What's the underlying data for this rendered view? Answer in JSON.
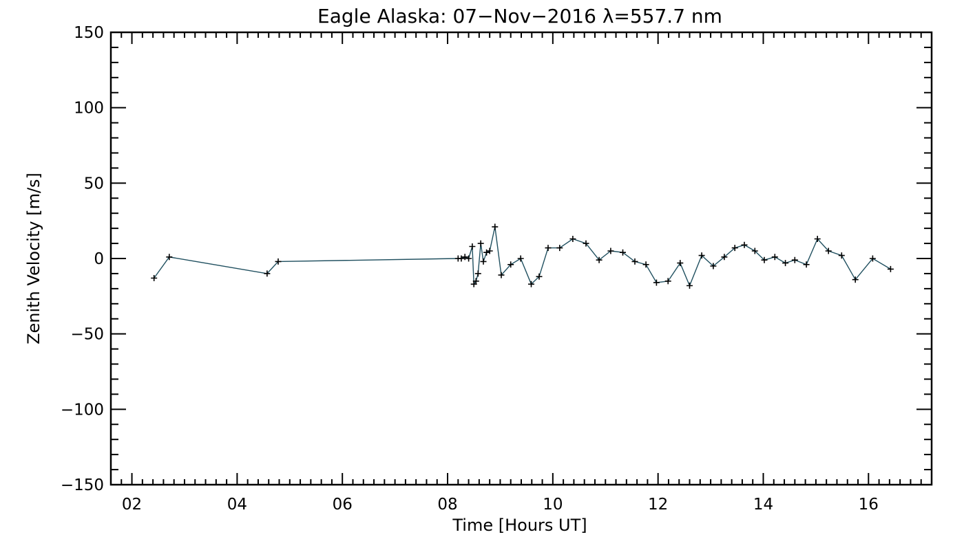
{
  "chart_data": {
    "type": "line",
    "title": "Eagle Alaska: 07−Nov−2016 λ=557.7 nm",
    "xlabel": "Time [Hours UT]",
    "ylabel": "Zenith Velocity [m/s]",
    "xlim": [
      1.6,
      17.2
    ],
    "ylim": [
      -150,
      150
    ],
    "x_ticks": [
      2,
      4,
      6,
      8,
      10,
      12,
      14,
      16
    ],
    "x_tick_labels": [
      "02",
      "04",
      "06",
      "08",
      "10",
      "12",
      "14",
      "16"
    ],
    "y_ticks": [
      -150,
      -100,
      -50,
      0,
      50,
      100,
      150
    ],
    "y_tick_labels": [
      "−150",
      "−100",
      "−50",
      "0",
      "50",
      "100",
      "150"
    ],
    "grid": false,
    "marker": "+",
    "colors": {
      "line": "#1f4f5f",
      "marker": "#000000",
      "frame": "#000000"
    },
    "series": [
      {
        "x": [
          2.42,
          2.71,
          4.57,
          4.78,
          8.2,
          8.26,
          8.33,
          8.4,
          8.47,
          8.5,
          8.54,
          8.58,
          8.63,
          8.68,
          8.74,
          8.8,
          8.9,
          9.02,
          9.2,
          9.39,
          9.59,
          9.74,
          9.91,
          10.13,
          10.38,
          10.63,
          10.88,
          11.1,
          11.33,
          11.56,
          11.77,
          11.97,
          12.19,
          12.42,
          12.6,
          12.83,
          13.05,
          13.26,
          13.46,
          13.64,
          13.84,
          14.02,
          14.22,
          14.42,
          14.6,
          14.82,
          15.03,
          15.24,
          15.49,
          15.75,
          16.08,
          16.42
        ],
        "y": [
          -13,
          1,
          -10,
          -2,
          0,
          0,
          1,
          0,
          8,
          -17,
          -15,
          -10,
          10,
          -2,
          4,
          5,
          21,
          -11,
          -4,
          0,
          -17,
          -12,
          7,
          7,
          13,
          10,
          -1,
          5,
          4,
          -2,
          -4,
          -16,
          -15,
          -3,
          -18,
          2,
          -5,
          1,
          7,
          9,
          5,
          -1,
          1,
          -3,
          -1,
          -4,
          13,
          5,
          2,
          -14,
          0,
          -7
        ]
      }
    ]
  }
}
